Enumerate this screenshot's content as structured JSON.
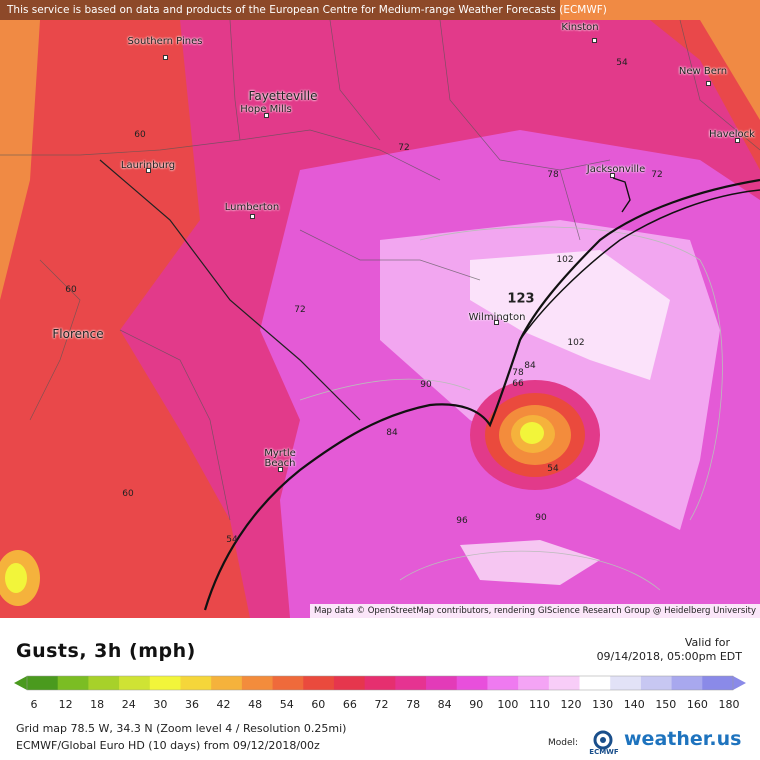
{
  "disclaimer": "This service is based on data and products of the European Centre for Medium-range Weather Forecasts (ECMWF)",
  "attribution": "Map data © OpenStreetMap contributors, rendering GIScience Research Group @ Heidelberg University",
  "cities": [
    {
      "name": "Kinston",
      "big": false
    },
    {
      "name": "Southern Pines",
      "big": false
    },
    {
      "name": "New Bern",
      "big": false
    },
    {
      "name": "Fayetteville",
      "big": true
    },
    {
      "name": "Hope Mills",
      "big": false
    },
    {
      "name": "Havelock",
      "big": false
    },
    {
      "name": "Laurinburg",
      "big": false
    },
    {
      "name": "Jacksonville",
      "big": false
    },
    {
      "name": "Lumberton",
      "big": false
    },
    {
      "name": "Wilmington",
      "big": false
    },
    {
      "name": "Florence",
      "big": true
    },
    {
      "name": "Myrtle Beach",
      "big": false
    }
  ],
  "contour_labels": [
    "54",
    "60",
    "72",
    "78",
    "72",
    "60",
    "102",
    "123",
    "72",
    "102",
    "84",
    "78",
    "66",
    "90",
    "84",
    "54",
    "60",
    "96",
    "90",
    "54",
    "60"
  ],
  "title": "Gusts, 3h (mph)",
  "valid_for_label": "Valid for",
  "valid_for_time": "09/14/2018, 05:00pm EDT",
  "scale": {
    "ticks": [
      "6",
      "12",
      "18",
      "24",
      "30",
      "36",
      "42",
      "48",
      "54",
      "60",
      "66",
      "72",
      "78",
      "84",
      "90",
      "100",
      "110",
      "120",
      "130",
      "140",
      "150",
      "160",
      "180"
    ],
    "colors": [
      "#4a9a1e",
      "#7bbd23",
      "#a7d12a",
      "#cfe334",
      "#f2f53a",
      "#f5d63a",
      "#f5b23c",
      "#f38c3c",
      "#ef6a3b",
      "#ea4a3d",
      "#e6364d",
      "#e62f6f",
      "#e63391",
      "#e33bb8",
      "#e84fdc",
      "#ef7af0",
      "#f4a4f5",
      "#f8cdf8",
      "#ffffff",
      "#e2e2f7",
      "#c7c7f2",
      "#a8a8ee",
      "#8a8ae8"
    ]
  },
  "footer": {
    "grid_info": "Grid map 78.5 W, 34.3 N (Zoom level 4 / Resolution 0.25mi)",
    "model_info": "ECMWF/Global Euro HD (10 days) from 09/12/2018/00z",
    "model_label": "Model:",
    "ecmwf_logo_text": "ECMWF",
    "brand": "weather.us"
  },
  "colors": {
    "orange": "#f08a44",
    "red": "#e9484a",
    "pink": "#e23a8a",
    "magenta": "#e45ad6",
    "light": "#f6c6f2",
    "yellow": "#f3ef3c"
  }
}
